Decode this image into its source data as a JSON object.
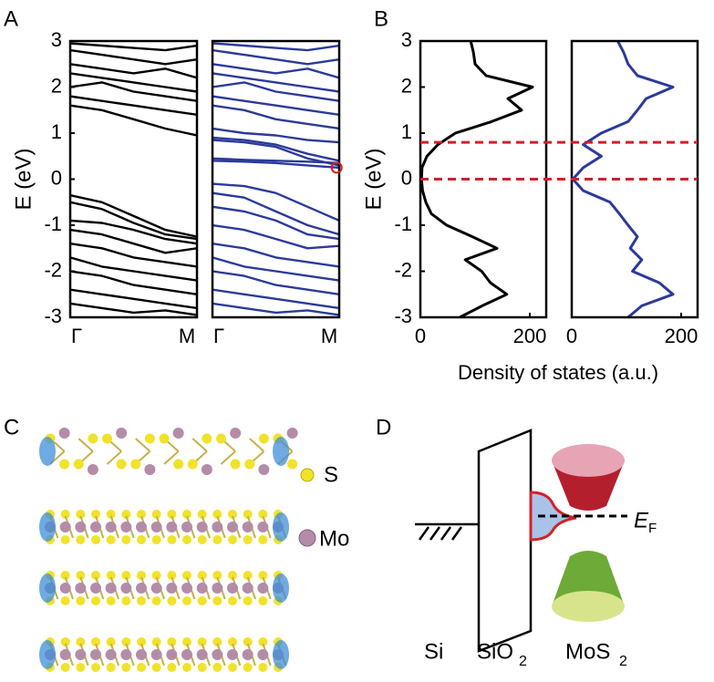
{
  "panel_labels": [
    "A",
    "B",
    "C",
    "D"
  ],
  "chart_data": [
    {
      "type": "line",
      "orientation": "vertical",
      "color": "#000000",
      "x": [
        0,
        0.25,
        0.5,
        0.75,
        1
      ],
      "xlim": [
        0,
        1
      ],
      "xticks": [
        {
          "value": 0,
          "label": "Γ"
        },
        {
          "value": 1,
          "label": "M"
        }
      ],
      "ylim": [
        -3,
        3
      ],
      "yticks": [
        -3,
        -2,
        -1,
        0,
        1,
        2,
        3
      ],
      "ylabel": "E (eV)",
      "series": [
        {
          "values": [
            -0.35,
            -0.5,
            -0.8,
            -1.1,
            -1.25
          ]
        },
        {
          "values": [
            -0.5,
            -0.65,
            -0.95,
            -1.2,
            -1.3
          ]
        },
        {
          "values": [
            -0.9,
            -0.95,
            -1.1,
            -1.3,
            -1.4
          ]
        },
        {
          "values": [
            -1.1,
            -1.2,
            -1.4,
            -1.6,
            -1.5
          ]
        },
        {
          "values": [
            -1.4,
            -1.5,
            -1.7,
            -1.8,
            -1.9
          ]
        },
        {
          "values": [
            -1.7,
            -1.9,
            -2,
            -2.1,
            -2.2
          ]
        },
        {
          "values": [
            -2,
            -2.1,
            -2.3,
            -2.4,
            -2.5
          ]
        },
        {
          "values": [
            -2.4,
            -2.5,
            -2.6,
            -2.7,
            -2.8
          ]
        },
        {
          "values": [
            -2.7,
            -2.8,
            -2.9,
            -2.85,
            -2.95
          ]
        },
        {
          "values": [
            1.6,
            1.5,
            1.3,
            1.1,
            0.95
          ]
        },
        {
          "values": [
            1.8,
            1.7,
            1.6,
            1.5,
            1.4
          ]
        },
        {
          "values": [
            2,
            2.1,
            1.9,
            1.8,
            1.7
          ]
        },
        {
          "values": [
            2.3,
            2.2,
            2.1,
            2,
            1.9
          ]
        },
        {
          "values": [
            2.5,
            2.4,
            2.3,
            2.4,
            2.2
          ]
        },
        {
          "values": [
            2.8,
            2.7,
            2.6,
            2.5,
            2.6
          ]
        },
        {
          "values": [
            2.95,
            2.9,
            2.85,
            2.8,
            2.9
          ]
        }
      ]
    },
    {
      "type": "line",
      "orientation": "vertical",
      "color": "#2b3a9a",
      "x": [
        0,
        0.25,
        0.5,
        0.75,
        1
      ],
      "xlim": [
        0,
        1
      ],
      "xticks": [
        {
          "value": 0,
          "label": "Γ"
        },
        {
          "value": 1,
          "label": "M"
        }
      ],
      "ylim": [
        -3,
        3
      ],
      "highlight": {
        "x": 0.98,
        "y": 0.25,
        "color": "#d0202a"
      },
      "series": [
        {
          "values": [
            -0.1,
            -0.15,
            -0.3,
            -0.6,
            -0.9
          ]
        },
        {
          "values": [
            -0.3,
            -0.4,
            -0.7,
            -1,
            -1.2
          ]
        },
        {
          "values": [
            -0.6,
            -0.7,
            -0.9,
            -1.2,
            -1.3
          ]
        },
        {
          "values": [
            -1,
            -1.1,
            -1.3,
            -1.5,
            -1.45
          ]
        },
        {
          "values": [
            -1.4,
            -1.5,
            -1.7,
            -1.8,
            -1.9
          ]
        },
        {
          "values": [
            -1.7,
            -1.9,
            -2,
            -2.1,
            -2.2
          ]
        },
        {
          "values": [
            -2,
            -2.1,
            -2.3,
            -2.4,
            -2.5
          ]
        },
        {
          "values": [
            -2.4,
            -2.5,
            -2.6,
            -2.7,
            -2.8
          ]
        },
        {
          "values": [
            -2.7,
            -2.8,
            -2.9,
            -2.85,
            -2.95
          ]
        },
        {
          "values": [
            0.4,
            0.38,
            0.35,
            0.3,
            0.25
          ]
        },
        {
          "values": [
            0.45,
            0.42,
            0.4,
            0.38,
            0.35
          ]
        },
        {
          "values": [
            0.85,
            0.8,
            0.7,
            0.45,
            0.3
          ]
        },
        {
          "values": [
            0.9,
            0.85,
            0.75,
            0.55,
            0.4
          ]
        },
        {
          "values": [
            1.1,
            1,
            0.95,
            0.85,
            0.8
          ]
        },
        {
          "values": [
            1.6,
            1.5,
            1.3,
            1.2,
            1.1
          ]
        },
        {
          "values": [
            1.8,
            1.7,
            1.6,
            1.5,
            1.4
          ]
        },
        {
          "values": [
            2,
            2.1,
            1.9,
            1.8,
            1.7
          ]
        },
        {
          "values": [
            2.3,
            2.2,
            2.1,
            2,
            1.9
          ]
        },
        {
          "values": [
            2.5,
            2.4,
            2.3,
            2.4,
            2.2
          ]
        },
        {
          "values": [
            2.8,
            2.7,
            2.6,
            2.5,
            2.6
          ]
        },
        {
          "values": [
            2.95,
            2.9,
            2.85,
            2.8,
            2.9
          ]
        }
      ]
    },
    {
      "type": "line",
      "orientation": "horizontal",
      "color": "#000000",
      "x": [
        -3,
        -2.75,
        -2.5,
        -2.25,
        -2,
        -1.75,
        -1.5,
        -1.25,
        -1,
        -0.75,
        -0.5,
        -0.25,
        0,
        0.25,
        0.5,
        0.75,
        1,
        1.25,
        1.5,
        1.75,
        2,
        2.25,
        2.5,
        2.75,
        3
      ],
      "xlim": [
        -3,
        3
      ],
      "xticks": [
        -3,
        -2,
        -1,
        0,
        1,
        2,
        3
      ],
      "xlabel": "E (eV)",
      "ylim": [
        0,
        230
      ],
      "yticks": [
        0,
        200
      ],
      "series": [
        {
          "values": [
            72,
            113,
            158,
            128,
            112,
            82,
            140,
            95,
            48,
            20,
            10,
            4,
            2,
            3,
            12,
            32,
            64,
            130,
            185,
            160,
            205,
            120,
            100,
            97,
            92
          ]
        }
      ]
    },
    {
      "type": "line",
      "orientation": "horizontal",
      "color": "#2b3a9a",
      "x": [
        -3,
        -2.75,
        -2.5,
        -2.25,
        -2,
        -1.75,
        -1.5,
        -1.25,
        -1,
        -0.75,
        -0.5,
        -0.25,
        0,
        0.25,
        0.5,
        0.75,
        1,
        1.25,
        1.5,
        1.75,
        2,
        2.25,
        2.5,
        2.75,
        3
      ],
      "xlim": [
        -3,
        3
      ],
      "ylim": [
        0,
        230
      ],
      "yticks": [
        0,
        200
      ],
      "series": [
        {
          "values": [
            103,
            128,
            185,
            160,
            111,
            128,
            107,
            120,
            103,
            87,
            70,
            21,
            2,
            21,
            54,
            21,
            54,
            103,
            120,
            136,
            185,
            120,
            103,
            95,
            84
          ]
        }
      ]
    }
  ],
  "dos_axis_label": "Density of states (a.u.)",
  "dos_reference_lines": {
    "values": [
      0.8,
      0
    ],
    "color": "#d0202a"
  },
  "structure_legend": [
    "S",
    "Mo"
  ],
  "diagram": {
    "si": "Si",
    "sio2": [
      "SiO",
      "2"
    ],
    "mos2": [
      "MoS",
      "2"
    ],
    "fermi": [
      "E",
      "F"
    ]
  }
}
